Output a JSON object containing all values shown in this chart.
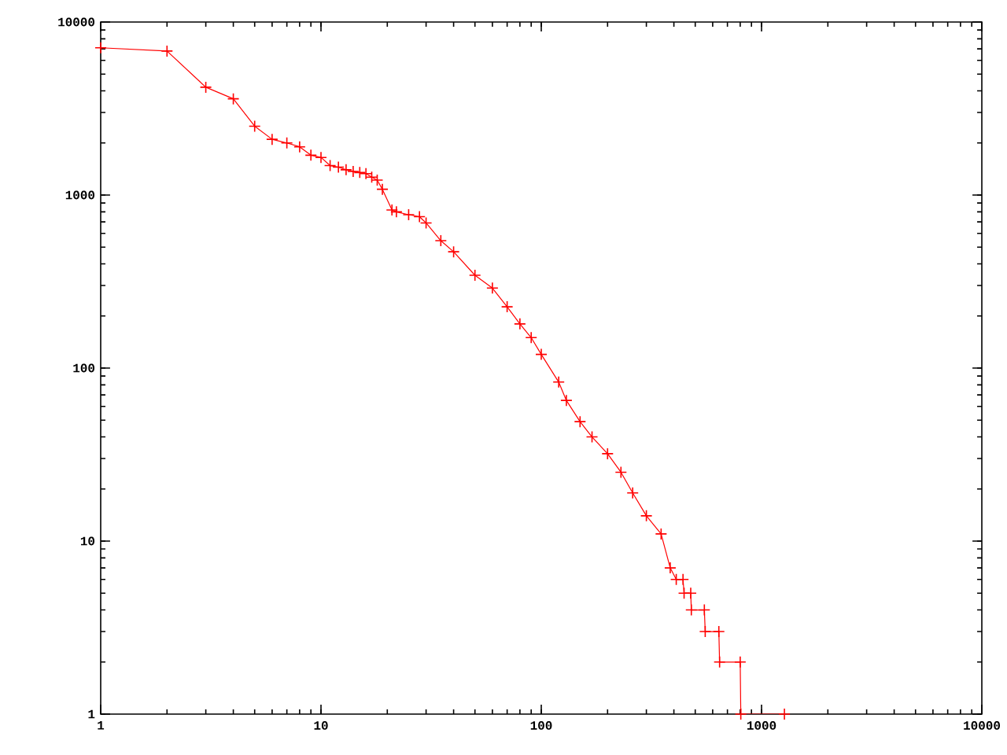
{
  "chart_data": {
    "type": "line",
    "log": "xy",
    "marker": "cross",
    "color": "#ff0000",
    "x": [
      1,
      2,
      3,
      4,
      5,
      6,
      7,
      8,
      9,
      10,
      11,
      12,
      13,
      14,
      15,
      16,
      17,
      18,
      19,
      21,
      22,
      25,
      28,
      30,
      35,
      40,
      50,
      60,
      70,
      80,
      90,
      100,
      120,
      130,
      150,
      170,
      200,
      230,
      260,
      300,
      350,
      385,
      410,
      440,
      445,
      477,
      480,
      550,
      555,
      640,
      645,
      800,
      805,
      1270
    ],
    "values": [
      7100,
      6800,
      4200,
      3600,
      2500,
      2100,
      2000,
      1900,
      1700,
      1650,
      1480,
      1450,
      1400,
      1370,
      1350,
      1330,
      1270,
      1220,
      1080,
      820,
      800,
      770,
      750,
      690,
      545,
      470,
      344,
      290,
      226,
      180,
      150,
      120,
      83,
      65,
      49,
      40,
      32,
      25,
      19,
      14,
      11,
      7,
      6,
      6,
      5,
      5,
      4,
      4,
      3,
      3,
      2,
      2,
      1,
      1
    ],
    "xlim": [
      1,
      10000
    ],
    "ylim": [
      1,
      10000
    ],
    "xticks": [
      1,
      10,
      100,
      1000,
      10000
    ],
    "yticks": [
      1,
      10,
      100,
      1000,
      10000
    ]
  }
}
